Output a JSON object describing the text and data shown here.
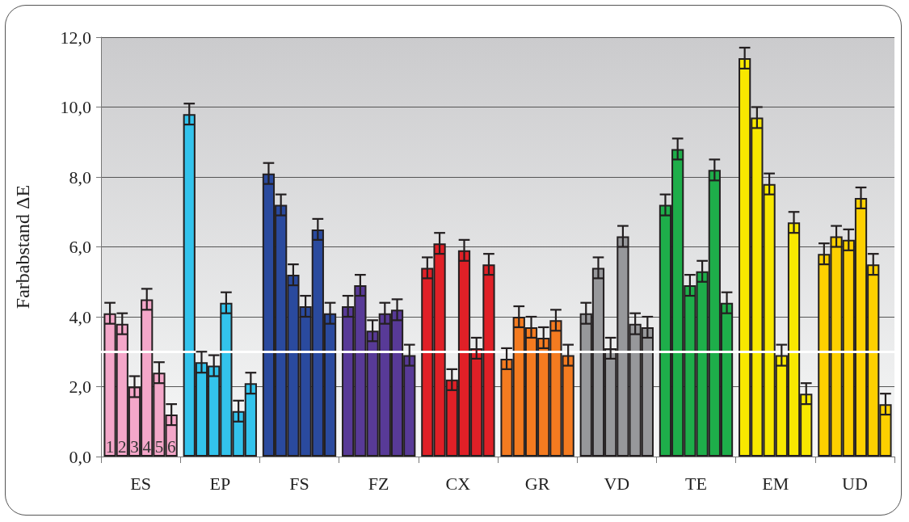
{
  "chart_data": {
    "type": "bar",
    "ylabel": "Farbabstand ΔE",
    "categories": [
      "ES",
      "EP",
      "FS",
      "FZ",
      "CX",
      "GR",
      "VD",
      "TE",
      "EM",
      "UD"
    ],
    "series": [
      {
        "name": "1",
        "colors": [
          "#f4a7c9",
          "#33c3ec",
          "#2a4a9e",
          "#583a97",
          "#e02027",
          "#f47b20",
          "#97989b",
          "#1eae4a",
          "#f8e800",
          "#fdd000"
        ],
        "values": [
          4.1,
          9.8,
          8.1,
          4.3,
          5.4,
          2.8,
          4.1,
          7.2,
          11.4,
          5.8
        ],
        "errors": [
          0.3,
          0.3,
          0.3,
          0.3,
          0.3,
          0.3,
          0.3,
          0.3,
          0.3,
          0.3
        ]
      },
      {
        "name": "2",
        "colors": [
          "#f4a7c9",
          "#33c3ec",
          "#2a4a9e",
          "#583a97",
          "#e02027",
          "#f47b20",
          "#97989b",
          "#1eae4a",
          "#f8e800",
          "#fdd000"
        ],
        "values": [
          3.8,
          2.7,
          7.2,
          4.9,
          6.1,
          4.0,
          5.4,
          8.8,
          9.7,
          6.3
        ],
        "errors": [
          0.3,
          0.3,
          0.3,
          0.3,
          0.3,
          0.3,
          0.3,
          0.3,
          0.3,
          0.3
        ]
      },
      {
        "name": "3",
        "colors": [
          "#f4a7c9",
          "#33c3ec",
          "#2a4a9e",
          "#583a97",
          "#e02027",
          "#f47b20",
          "#97989b",
          "#1eae4a",
          "#f8e800",
          "#fdd000"
        ],
        "values": [
          2.0,
          2.6,
          5.2,
          3.6,
          2.2,
          3.7,
          3.1,
          4.9,
          7.8,
          6.2
        ],
        "errors": [
          0.3,
          0.3,
          0.3,
          0.3,
          0.3,
          0.3,
          0.3,
          0.3,
          0.3,
          0.3
        ]
      },
      {
        "name": "4",
        "colors": [
          "#f4a7c9",
          "#33c3ec",
          "#2a4a9e",
          "#583a97",
          "#e02027",
          "#f47b20",
          "#97989b",
          "#1eae4a",
          "#f8e800",
          "#fdd000"
        ],
        "values": [
          4.5,
          4.4,
          4.3,
          4.1,
          5.9,
          3.4,
          6.3,
          5.3,
          2.9,
          7.4
        ],
        "errors": [
          0.3,
          0.3,
          0.3,
          0.3,
          0.3,
          0.3,
          0.3,
          0.3,
          0.3,
          0.3
        ]
      },
      {
        "name": "5",
        "colors": [
          "#f4a7c9",
          "#33c3ec",
          "#2a4a9e",
          "#583a97",
          "#e02027",
          "#f47b20",
          "#97989b",
          "#1eae4a",
          "#f8e800",
          "#fdd000"
        ],
        "values": [
          2.4,
          1.3,
          6.5,
          4.2,
          3.1,
          3.9,
          3.8,
          8.2,
          6.7,
          5.5
        ],
        "errors": [
          0.3,
          0.3,
          0.3,
          0.3,
          0.3,
          0.3,
          0.3,
          0.3,
          0.3,
          0.3
        ]
      },
      {
        "name": "6",
        "colors": [
          "#f4a7c9",
          "#33c3ec",
          "#2a4a9e",
          "#583a97",
          "#e02027",
          "#f47b20",
          "#97989b",
          "#1eae4a",
          "#f8e800",
          "#fdd000"
        ],
        "values": [
          1.2,
          2.1,
          4.1,
          2.9,
          5.5,
          2.9,
          3.7,
          4.4,
          1.8,
          1.5
        ],
        "errors": [
          0.3,
          0.3,
          0.3,
          0.3,
          0.3,
          0.3,
          0.3,
          0.3,
          0.3,
          0.3
        ]
      }
    ],
    "ylim": [
      0,
      12
    ],
    "yticks": [
      {
        "value": 0,
        "label": "0,0"
      },
      {
        "value": 2,
        "label": "2,0"
      },
      {
        "value": 4,
        "label": "4,0"
      },
      {
        "value": 6,
        "label": "6,0"
      },
      {
        "value": 8,
        "label": "8,0"
      },
      {
        "value": 10,
        "label": "10,0"
      },
      {
        "value": 12,
        "label": "12,0"
      }
    ],
    "ref_lines": [
      {
        "axis": "y",
        "value": 3,
        "color": "#ffffff"
      }
    ],
    "grid": "y",
    "legend": false
  }
}
